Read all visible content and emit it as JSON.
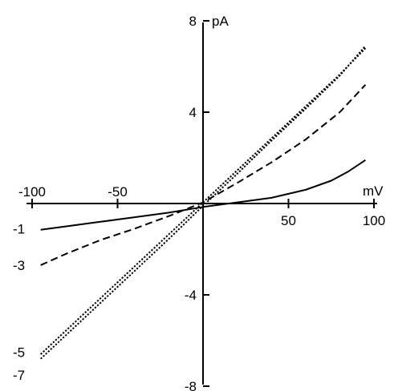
{
  "chart_data": {
    "type": "line",
    "title": "",
    "xlabel": "mV",
    "ylabel": "pA",
    "xlim": [
      -100,
      100
    ],
    "ylim": [
      -8,
      8
    ],
    "grid": false,
    "legend": "none",
    "x_ticks": [
      {
        "value": -100,
        "label": "-100"
      },
      {
        "value": -50,
        "label": "-50"
      },
      {
        "value": 50,
        "label": "50"
      },
      {
        "value": 100,
        "label": "100"
      }
    ],
    "y_ticks": [
      {
        "value": 8,
        "label": "8"
      },
      {
        "value": 4,
        "label": "4"
      },
      {
        "value": -4,
        "label": "-4"
      },
      {
        "value": -8,
        "label": "-8"
      }
    ],
    "curve_labels": [
      {
        "label": "-1",
        "y": -1.1
      },
      {
        "label": "-3",
        "y": -2.7
      },
      {
        "label": "-5",
        "y": -6.5
      },
      {
        "label": "-7",
        "y": -7.5
      }
    ],
    "series": [
      {
        "style": "solid",
        "x": [
          -95,
          -80,
          -60,
          -40,
          -20,
          0,
          20,
          40,
          60,
          75,
          85,
          95
        ],
        "y": [
          -1.15,
          -1.0,
          -0.8,
          -0.6,
          -0.4,
          -0.15,
          0.05,
          0.25,
          0.6,
          1.0,
          1.4,
          1.9
        ]
      },
      {
        "style": "dashed",
        "x": [
          -95,
          -80,
          -60,
          -40,
          -20,
          0,
          20,
          40,
          60,
          80,
          95
        ],
        "y": [
          -2.7,
          -2.2,
          -1.6,
          -1.1,
          -0.55,
          0.05,
          0.9,
          1.8,
          2.8,
          4.0,
          5.2
        ]
      },
      {
        "style": "dotted",
        "x": [
          -95,
          -80,
          -60,
          -40,
          -20,
          0,
          20,
          40,
          60,
          80,
          95
        ],
        "y": [
          -6.8,
          -5.75,
          -4.35,
          -2.95,
          -1.55,
          -0.1,
          1.3,
          2.75,
          4.15,
          5.6,
          6.9
        ]
      },
      {
        "style": "dotted",
        "x": [
          -95,
          -80,
          -60,
          -40,
          -20,
          0,
          20,
          40,
          60,
          80,
          95
        ],
        "y": [
          -6.6,
          -5.55,
          -4.15,
          -2.75,
          -1.35,
          0.05,
          1.45,
          2.85,
          4.25,
          5.65,
          6.8
        ]
      }
    ]
  }
}
